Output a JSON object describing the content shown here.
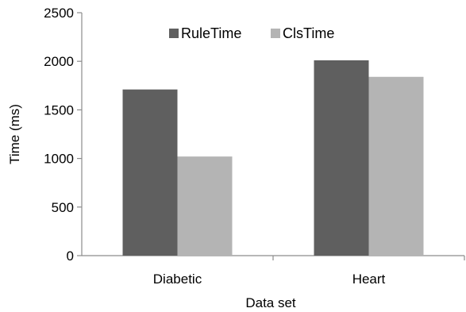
{
  "chart_data": {
    "type": "bar",
    "categories": [
      "Diabetic",
      "Heart"
    ],
    "series": [
      {
        "name": "RuleTime",
        "values": [
          1710,
          2010
        ],
        "color": "#5f5f5f"
      },
      {
        "name": "ClsTime",
        "values": [
          1020,
          1840
        ],
        "color": "#b4b4b4"
      }
    ],
    "xlabel": "Data set",
    "ylabel": "Time (ms)",
    "ylim": [
      0,
      2500
    ],
    "yticks": [
      0,
      500,
      1000,
      1500,
      2000,
      2500
    ],
    "grid": false,
    "legend_placement": "top-center"
  }
}
